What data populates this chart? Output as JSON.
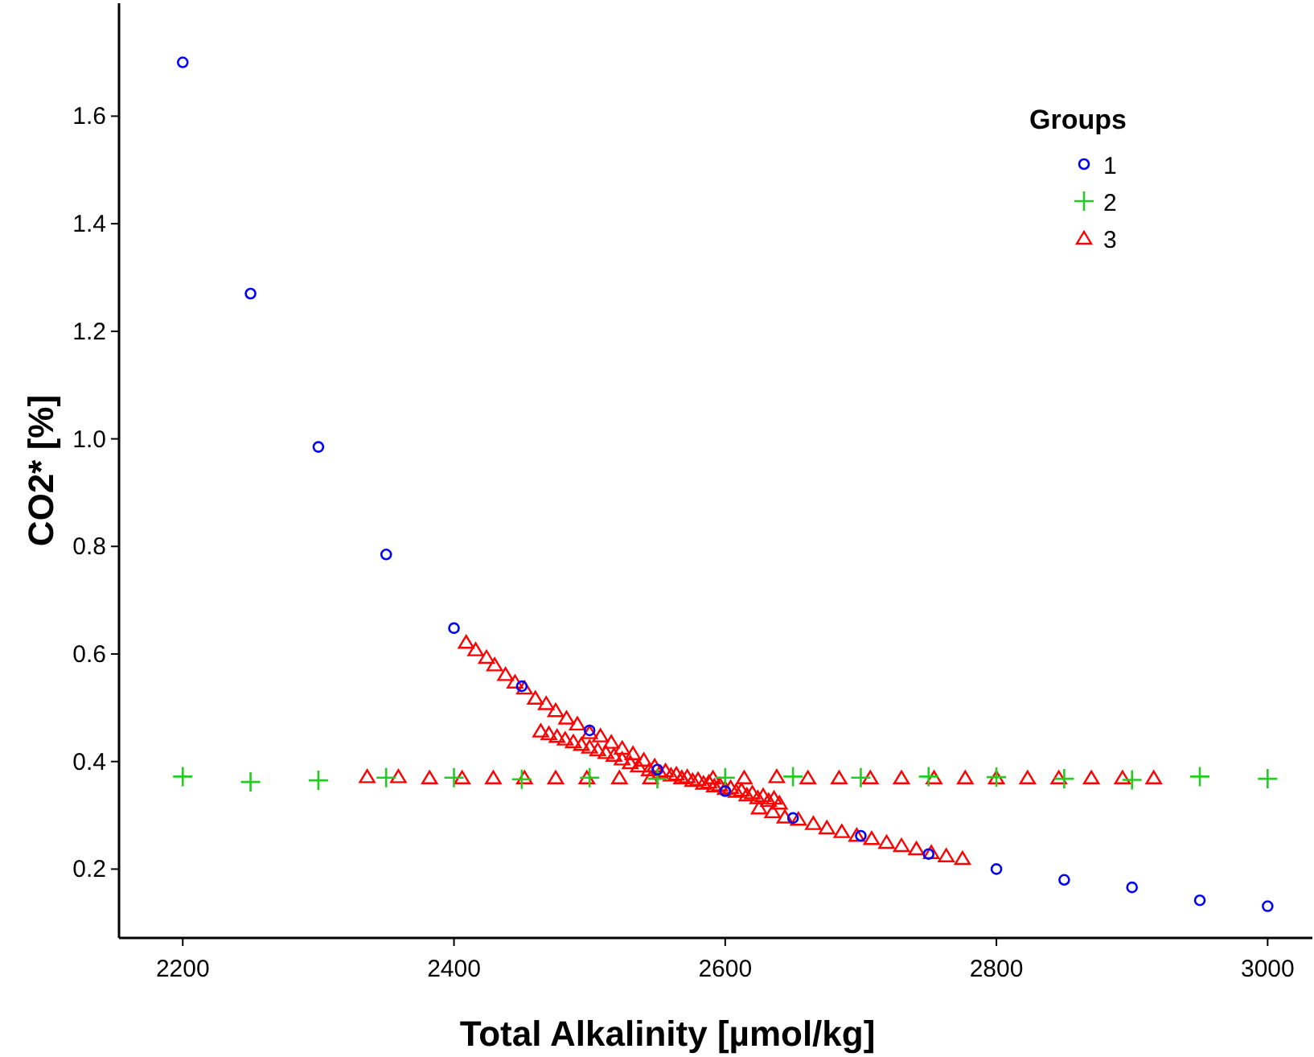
{
  "chart_data": {
    "type": "scatter",
    "xlabel": "Total Alkalinity [µmol/kg]",
    "ylabel": "CO2* [%]",
    "legend_title": "Groups",
    "legend": "top right",
    "grid": false,
    "xlim": [
      2153,
      3033
    ],
    "xticks": [
      2200,
      2400,
      2600,
      2800,
      3000
    ],
    "ylim": [
      0.072,
      1.81
    ],
    "yticks": [
      0.2,
      0.4,
      0.6,
      0.8,
      {
        "value": 1,
        "label": "1.0"
      },
      1.2,
      1.4,
      1.6
    ],
    "series": [
      {
        "name": "1",
        "color": "#0000ff",
        "marker": "circle",
        "x": [
          2200,
          2250,
          2300,
          2350,
          2400,
          2450,
          2500,
          2550,
          2600,
          2650,
          2700,
          2750,
          2800,
          2850,
          2900,
          2950,
          3000
        ],
        "values": [
          1.7,
          1.27,
          0.985,
          0.785,
          0.648,
          0.54,
          0.458,
          0.385,
          0.345,
          0.295,
          0.262,
          0.228,
          0.2,
          0.18,
          0.166,
          0.142,
          0.131
        ]
      },
      {
        "name": "2",
        "color": "#22cc22",
        "marker": "cross",
        "x": [
          2200,
          2250,
          2300,
          2350,
          2400,
          2450,
          2500,
          2550,
          2600,
          2650,
          2700,
          2750,
          2800,
          2850,
          2900,
          2950,
          3000
        ],
        "values": [
          0.372,
          0.362,
          0.365,
          0.37,
          0.37,
          0.367,
          0.37,
          0.368,
          0.37,
          0.372,
          0.37,
          0.372,
          0.371,
          0.368,
          0.366,
          0.372,
          0.368
        ]
      },
      {
        "name": "3",
        "color": "#ff0000",
        "marker": "triangle",
        "x": [
          2336,
          2359,
          2382,
          2406,
          2429,
          2452,
          2475,
          2498,
          2522,
          2545,
          2568,
          2591,
          2614,
          2638,
          2661,
          2684,
          2707,
          2730,
          2754,
          2777,
          2800,
          2823,
          2846,
          2870,
          2893,
          2916,
          2409,
          2416,
          2424,
          2430,
          2438,
          2445,
          2452,
          2460,
          2468,
          2475,
          2483,
          2491,
          2500,
          2508,
          2516,
          2524,
          2532,
          2540,
          2464,
          2470,
          2476,
          2482,
          2488,
          2494,
          2500,
          2506,
          2512,
          2518,
          2524,
          2530,
          2536,
          2548,
          2556,
          2564,
          2572,
          2580,
          2588,
          2596,
          2604,
          2612,
          2620,
          2628,
          2636,
          2544,
          2552,
          2560,
          2568,
          2576,
          2584,
          2592,
          2600,
          2608,
          2616,
          2624,
          2632,
          2640,
          2625,
          2635,
          2644,
          2654,
          2665,
          2675,
          2686,
          2697,
          2708,
          2719,
          2730,
          2741,
          2752,
          2763,
          2775
        ],
        "values": [
          0.372,
          0.372,
          0.37,
          0.37,
          0.37,
          0.37,
          0.37,
          0.37,
          0.37,
          0.37,
          0.37,
          0.37,
          0.37,
          0.372,
          0.37,
          0.37,
          0.37,
          0.37,
          0.37,
          0.37,
          0.37,
          0.37,
          0.37,
          0.37,
          0.37,
          0.37,
          0.622,
          0.608,
          0.594,
          0.58,
          0.562,
          0.548,
          0.537,
          0.518,
          0.508,
          0.495,
          0.481,
          0.47,
          0.454,
          0.448,
          0.436,
          0.425,
          0.415,
          0.403,
          0.457,
          0.452,
          0.447,
          0.442,
          0.437,
          0.432,
          0.427,
          0.422,
          0.417,
          0.412,
          0.405,
          0.398,
          0.392,
          0.392,
          0.383,
          0.377,
          0.372,
          0.367,
          0.362,
          0.357,
          0.352,
          0.347,
          0.342,
          0.337,
          0.332,
          0.385,
          0.38,
          0.375,
          0.37,
          0.365,
          0.36,
          0.355,
          0.35,
          0.345,
          0.338,
          0.333,
          0.328,
          0.323,
          0.314,
          0.307,
          0.297,
          0.293,
          0.285,
          0.277,
          0.27,
          0.263,
          0.257,
          0.25,
          0.244,
          0.238,
          0.231,
          0.225,
          0.22
        ]
      }
    ]
  }
}
